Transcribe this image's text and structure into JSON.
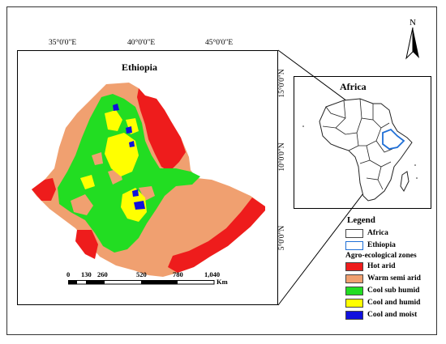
{
  "map": {
    "title": "Ethiopia",
    "inset_title": "Africa",
    "north_label": "N",
    "longitude_ticks": [
      "35°0'0\"E",
      "40°0'0\"E",
      "45°0'0\"E"
    ],
    "latitude_ticks": [
      "15°0'0\"N",
      "10°0'0\"N",
      "5°0'0\"N"
    ],
    "scale_bar": {
      "labels": [
        "0",
        "130",
        "260",
        "520",
        "780",
        "1,040"
      ],
      "unit": "Km"
    }
  },
  "legend": {
    "title": "Legend",
    "boundaries": [
      {
        "label": "Africa",
        "color": "#444444"
      },
      {
        "label": "Ethiopia",
        "color": "#1f6fd6"
      }
    ],
    "zones_title": "Agro-ecological zones",
    "zones": [
      {
        "label": "Hot arid",
        "color": "#ee1c1c"
      },
      {
        "label": "Warm semi arid",
        "color": "#f0a070"
      },
      {
        "label": "Cool sub humid",
        "color": "#22dd22"
      },
      {
        "label": "Cool and humid",
        "color": "#ffff00"
      },
      {
        "label": "Cool and moist",
        "color": "#1010dd"
      }
    ]
  }
}
